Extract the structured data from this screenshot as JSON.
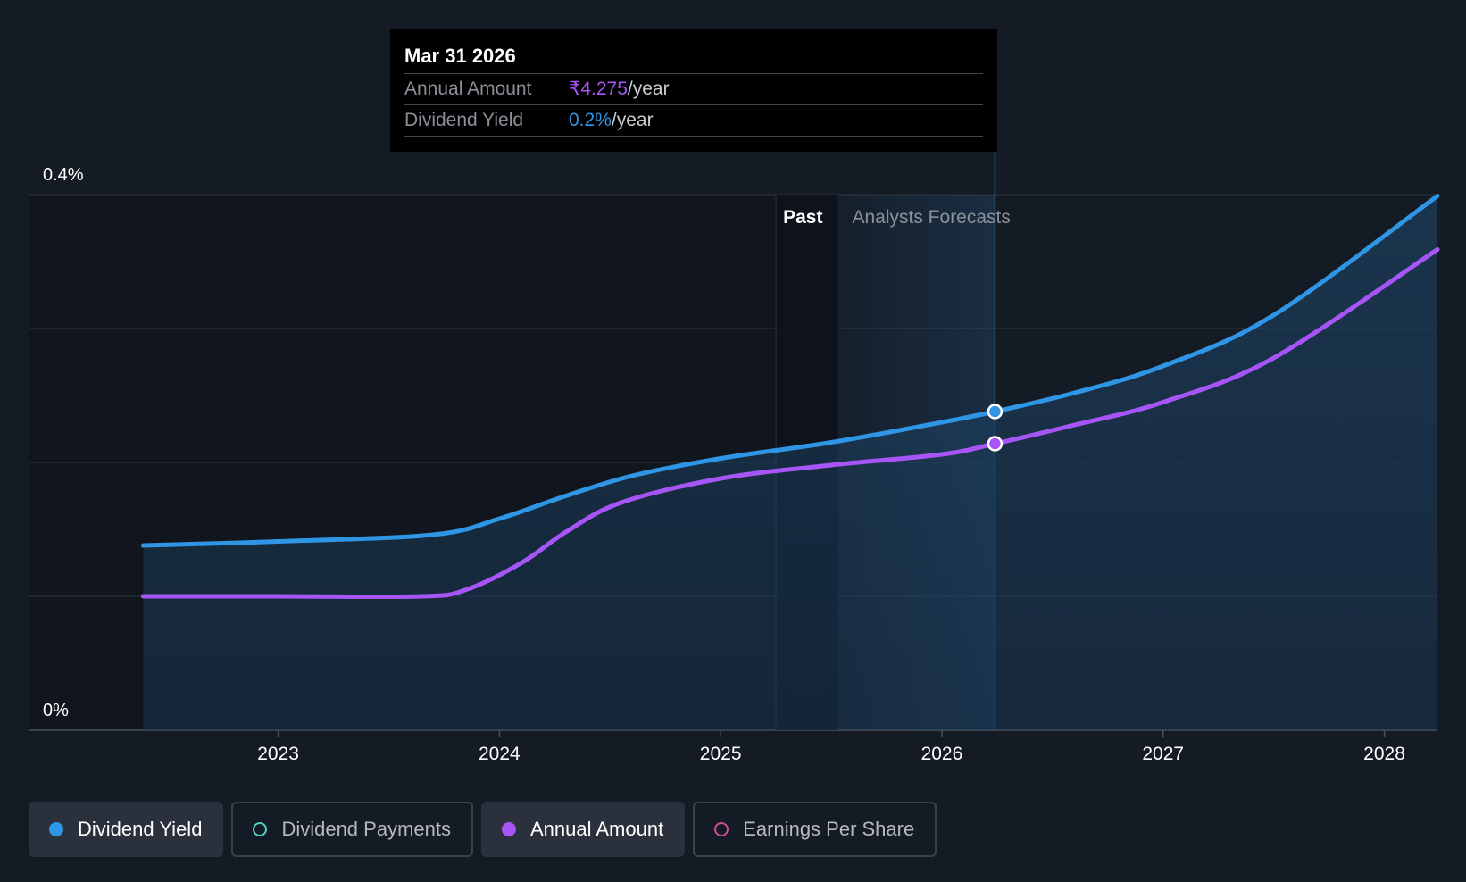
{
  "tooltip": {
    "date": "Mar 31 2026",
    "annual_amount_label": "Annual Amount",
    "annual_amount_value": "₹4.275",
    "annual_amount_unit": "/year",
    "dividend_yield_label": "Dividend Yield",
    "dividend_yield_value": "0.2%",
    "dividend_yield_unit": "/year"
  },
  "legend": [
    {
      "label": "Dividend Yield",
      "active": true,
      "color": "#2f95e5"
    },
    {
      "label": "Dividend Payments",
      "active": false,
      "color": "#4fd1c5"
    },
    {
      "label": "Annual Amount",
      "active": true,
      "color": "#a855f7"
    },
    {
      "label": "Earnings Per Share",
      "active": false,
      "color": "#d04b8c"
    }
  ],
  "chart_data": {
    "type": "line",
    "y_tick_labels": [
      "0.4%",
      "0%"
    ],
    "ylim": [
      0,
      0.4
    ],
    "x_tick_labels": [
      "2023",
      "2024",
      "2025",
      "2026",
      "2027",
      "2028"
    ],
    "x_tick_values": [
      2023,
      2024,
      2025,
      2026,
      2027,
      2028
    ],
    "xlim": [
      2022.13,
      2028.24
    ],
    "grid": true,
    "past_label": "Past",
    "forecast_label": "Analysts Forecasts",
    "past_region": [
      2025.25,
      2025.53
    ],
    "forecast_start": 2025.53,
    "cursor_x": 2026.24,
    "series": [
      {
        "name": "Dividend Yield",
        "color": "#2f95e5",
        "fill": true,
        "x": [
          2022.39,
          2023.0,
          2023.7,
          2024.0,
          2024.3,
          2024.6,
          2025.0,
          2025.5,
          2026.0,
          2026.24,
          2026.6,
          2027.0,
          2027.5,
          2028.24
        ],
        "y": [
          0.138,
          0.141,
          0.146,
          0.158,
          0.175,
          0.19,
          0.203,
          0.215,
          0.23,
          0.238,
          0.252,
          0.272,
          0.31,
          0.399
        ]
      },
      {
        "name": "Annual Amount",
        "color": "#a855f7",
        "fill": false,
        "x": [
          2022.39,
          2023.0,
          2023.65,
          2023.85,
          2024.1,
          2024.3,
          2024.55,
          2025.0,
          2025.5,
          2026.0,
          2026.24,
          2026.6,
          2027.0,
          2027.5,
          2028.24
        ],
        "y": [
          0.1,
          0.1,
          0.1,
          0.105,
          0.125,
          0.148,
          0.17,
          0.188,
          0.198,
          0.206,
          0.214,
          0.228,
          0.245,
          0.278,
          0.359
        ]
      }
    ]
  }
}
